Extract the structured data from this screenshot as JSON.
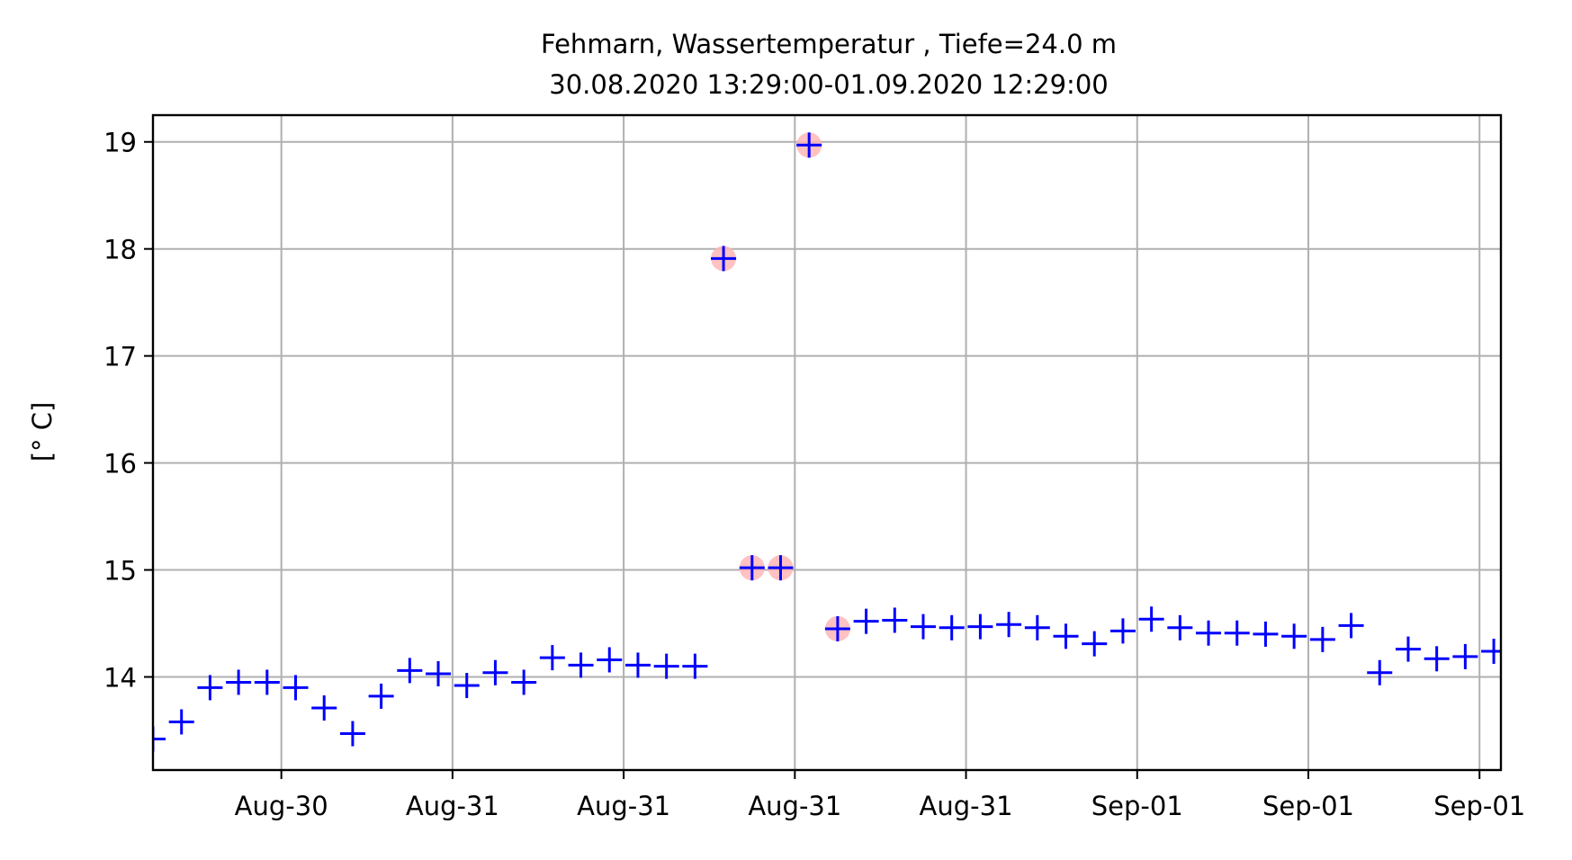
{
  "chart_data": {
    "type": "scatter",
    "title": "Fehmarn, Wassertemperatur , Tiefe=24.0 m",
    "subtitle": "30.08.2020 13:29:00-01.09.2020 12:29:00",
    "xlabel": "",
    "ylabel": "[° C]",
    "x_unit": "hours since 30.08.2020 13:29:00",
    "xlim": [
      0,
      47.25
    ],
    "ylim": [
      13.13,
      19.25
    ],
    "yticks": [
      14,
      15,
      16,
      17,
      18,
      19
    ],
    "xticks": [
      {
        "x": 4.5,
        "label": "Aug-30"
      },
      {
        "x": 10.5,
        "label": "Aug-31"
      },
      {
        "x": 16.5,
        "label": "Aug-31"
      },
      {
        "x": 22.5,
        "label": "Aug-31"
      },
      {
        "x": 28.5,
        "label": "Aug-31"
      },
      {
        "x": 34.5,
        "label": "Sep-01"
      },
      {
        "x": 40.5,
        "label": "Sep-01"
      },
      {
        "x": 46.5,
        "label": "Sep-01"
      }
    ],
    "grid": true,
    "series": [
      {
        "name": "",
        "marker": "+",
        "color": "#0000ff",
        "x": [
          0,
          1,
          2,
          3,
          4,
          5,
          6,
          7,
          8,
          9,
          10,
          11,
          12,
          13,
          14,
          15,
          16,
          17,
          18,
          19,
          20,
          21,
          22,
          23,
          24,
          25,
          26,
          27,
          28,
          29,
          30,
          31,
          32,
          33,
          34,
          35,
          36,
          37,
          38,
          39,
          40,
          41,
          42,
          43,
          44,
          45,
          46,
          47
        ],
        "y": [
          13.42,
          13.58,
          13.9,
          13.95,
          13.95,
          13.9,
          13.71,
          13.47,
          13.82,
          14.06,
          14.03,
          13.92,
          14.04,
          13.95,
          14.18,
          14.11,
          14.16,
          14.11,
          14.1,
          14.1,
          17.91,
          15.02,
          15.02,
          18.97,
          14.45,
          14.52,
          14.53,
          14.47,
          14.46,
          14.47,
          14.49,
          14.46,
          14.38,
          14.31,
          14.43,
          14.54,
          14.46,
          14.41,
          14.41,
          14.4,
          14.38,
          14.35,
          14.48,
          14.04,
          14.26,
          14.17,
          14.19,
          14.24
        ]
      }
    ],
    "flagged": {
      "color": "#ffb6b6",
      "x": [
        20,
        21,
        22,
        23,
        24
      ],
      "y": [
        17.91,
        15.02,
        15.02,
        18.97,
        14.45
      ]
    }
  }
}
